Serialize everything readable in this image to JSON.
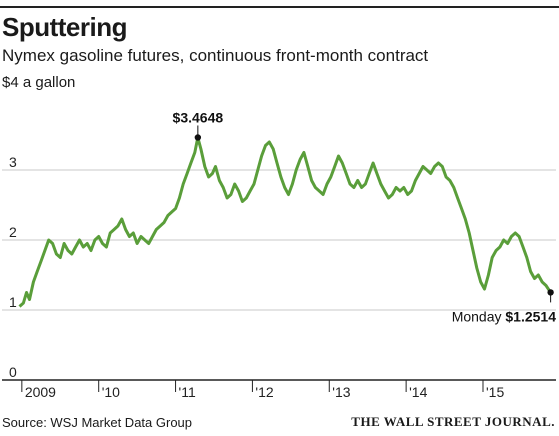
{
  "title": "Sputtering",
  "subtitle": "Nymex gasoline futures, continuous front-month contract",
  "units_label": "$4 a gallon",
  "source": "Source: WSJ Market Data Group",
  "brand": "THE WALL STREET JOURNAL.",
  "colors": {
    "line": "#5a9e3a",
    "grid": "#c8c8c8",
    "axis": "#222222"
  },
  "chart_data": {
    "type": "line",
    "title": "Sputtering",
    "subtitle": "Nymex gasoline futures, continuous front-month contract",
    "ylabel": "$4 a gallon",
    "ylim": [
      0,
      4
    ],
    "xlim": [
      2008.95,
      2015.95
    ],
    "y_ticks": [
      {
        "value": 0,
        "label": "0"
      },
      {
        "value": 1,
        "label": "1"
      },
      {
        "value": 2,
        "label": "2"
      },
      {
        "value": 3,
        "label": "3"
      }
    ],
    "x_ticks": [
      {
        "value": 2009,
        "label": "2009"
      },
      {
        "value": 2010,
        "label": "'10"
      },
      {
        "value": 2011,
        "label": "'11"
      },
      {
        "value": 2012,
        "label": "'12"
      },
      {
        "value": 2013,
        "label": "'13"
      },
      {
        "value": 2014,
        "label": "'14"
      },
      {
        "value": 2015,
        "label": "'15"
      }
    ],
    "grid": true,
    "series": [
      {
        "points": [
          [
            2008.97,
            1.05
          ],
          [
            2009.02,
            1.1
          ],
          [
            2009.06,
            1.25
          ],
          [
            2009.1,
            1.15
          ],
          [
            2009.15,
            1.4
          ],
          [
            2009.2,
            1.55
          ],
          [
            2009.25,
            1.7
          ],
          [
            2009.3,
            1.85
          ],
          [
            2009.35,
            2.0
          ],
          [
            2009.4,
            1.95
          ],
          [
            2009.45,
            1.8
          ],
          [
            2009.5,
            1.75
          ],
          [
            2009.55,
            1.95
          ],
          [
            2009.6,
            1.85
          ],
          [
            2009.65,
            1.8
          ],
          [
            2009.7,
            1.9
          ],
          [
            2009.75,
            2.0
          ],
          [
            2009.8,
            1.9
          ],
          [
            2009.85,
            1.95
          ],
          [
            2009.9,
            1.85
          ],
          [
            2009.95,
            2.0
          ],
          [
            2010.0,
            2.05
          ],
          [
            2010.05,
            1.95
          ],
          [
            2010.1,
            1.9
          ],
          [
            2010.15,
            2.1
          ],
          [
            2010.2,
            2.15
          ],
          [
            2010.25,
            2.2
          ],
          [
            2010.3,
            2.3
          ],
          [
            2010.35,
            2.15
          ],
          [
            2010.4,
            2.05
          ],
          [
            2010.45,
            2.1
          ],
          [
            2010.5,
            1.95
          ],
          [
            2010.55,
            2.05
          ],
          [
            2010.6,
            2.0
          ],
          [
            2010.65,
            1.95
          ],
          [
            2010.7,
            2.05
          ],
          [
            2010.75,
            2.15
          ],
          [
            2010.8,
            2.2
          ],
          [
            2010.85,
            2.25
          ],
          [
            2010.9,
            2.35
          ],
          [
            2010.95,
            2.4
          ],
          [
            2011.0,
            2.45
          ],
          [
            2011.05,
            2.6
          ],
          [
            2011.1,
            2.8
          ],
          [
            2011.15,
            2.95
          ],
          [
            2011.2,
            3.1
          ],
          [
            2011.25,
            3.25
          ],
          [
            2011.29,
            3.4648
          ],
          [
            2011.33,
            3.3
          ],
          [
            2011.38,
            3.05
          ],
          [
            2011.43,
            2.9
          ],
          [
            2011.48,
            2.95
          ],
          [
            2011.52,
            3.05
          ],
          [
            2011.57,
            2.85
          ],
          [
            2011.62,
            2.75
          ],
          [
            2011.67,
            2.6
          ],
          [
            2011.72,
            2.65
          ],
          [
            2011.77,
            2.8
          ],
          [
            2011.82,
            2.7
          ],
          [
            2011.87,
            2.55
          ],
          [
            2011.92,
            2.6
          ],
          [
            2011.97,
            2.7
          ],
          [
            2012.02,
            2.8
          ],
          [
            2012.07,
            3.0
          ],
          [
            2012.12,
            3.2
          ],
          [
            2012.17,
            3.35
          ],
          [
            2012.22,
            3.4
          ],
          [
            2012.27,
            3.3
          ],
          [
            2012.32,
            3.1
          ],
          [
            2012.37,
            2.9
          ],
          [
            2012.42,
            2.75
          ],
          [
            2012.47,
            2.65
          ],
          [
            2012.52,
            2.8
          ],
          [
            2012.57,
            3.0
          ],
          [
            2012.62,
            3.15
          ],
          [
            2012.67,
            3.25
          ],
          [
            2012.72,
            3.05
          ],
          [
            2012.77,
            2.85
          ],
          [
            2012.82,
            2.75
          ],
          [
            2012.87,
            2.7
          ],
          [
            2012.92,
            2.65
          ],
          [
            2012.97,
            2.8
          ],
          [
            2013.02,
            2.9
          ],
          [
            2013.07,
            3.05
          ],
          [
            2013.12,
            3.2
          ],
          [
            2013.17,
            3.1
          ],
          [
            2013.22,
            2.95
          ],
          [
            2013.27,
            2.8
          ],
          [
            2013.32,
            2.75
          ],
          [
            2013.37,
            2.85
          ],
          [
            2013.42,
            2.75
          ],
          [
            2013.47,
            2.8
          ],
          [
            2013.52,
            2.95
          ],
          [
            2013.57,
            3.1
          ],
          [
            2013.62,
            2.95
          ],
          [
            2013.67,
            2.8
          ],
          [
            2013.72,
            2.7
          ],
          [
            2013.77,
            2.6
          ],
          [
            2013.82,
            2.65
          ],
          [
            2013.87,
            2.75
          ],
          [
            2013.92,
            2.7
          ],
          [
            2013.97,
            2.75
          ],
          [
            2014.02,
            2.65
          ],
          [
            2014.07,
            2.7
          ],
          [
            2014.12,
            2.85
          ],
          [
            2014.17,
            2.95
          ],
          [
            2014.22,
            3.05
          ],
          [
            2014.27,
            3.0
          ],
          [
            2014.32,
            2.95
          ],
          [
            2014.37,
            3.05
          ],
          [
            2014.42,
            3.1
          ],
          [
            2014.47,
            3.05
          ],
          [
            2014.52,
            2.9
          ],
          [
            2014.57,
            2.85
          ],
          [
            2014.62,
            2.75
          ],
          [
            2014.67,
            2.6
          ],
          [
            2014.72,
            2.45
          ],
          [
            2014.77,
            2.3
          ],
          [
            2014.82,
            2.1
          ],
          [
            2014.87,
            1.85
          ],
          [
            2014.92,
            1.6
          ],
          [
            2014.97,
            1.4
          ],
          [
            2015.02,
            1.3
          ],
          [
            2015.07,
            1.5
          ],
          [
            2015.12,
            1.75
          ],
          [
            2015.17,
            1.85
          ],
          [
            2015.22,
            1.9
          ],
          [
            2015.27,
            2.0
          ],
          [
            2015.32,
            1.95
          ],
          [
            2015.37,
            2.05
          ],
          [
            2015.42,
            2.1
          ],
          [
            2015.47,
            2.05
          ],
          [
            2015.52,
            1.9
          ],
          [
            2015.57,
            1.75
          ],
          [
            2015.62,
            1.55
          ],
          [
            2015.67,
            1.45
          ],
          [
            2015.72,
            1.5
          ],
          [
            2015.77,
            1.4
          ],
          [
            2015.82,
            1.35
          ],
          [
            2015.88,
            1.2514
          ]
        ]
      }
    ],
    "annotations": [
      {
        "x": 2011.29,
        "y": 3.4648,
        "label": "$3.4648",
        "prefix": ""
      },
      {
        "x": 2015.88,
        "y": 1.2514,
        "label": "$1.2514",
        "prefix": "Monday"
      }
    ]
  }
}
